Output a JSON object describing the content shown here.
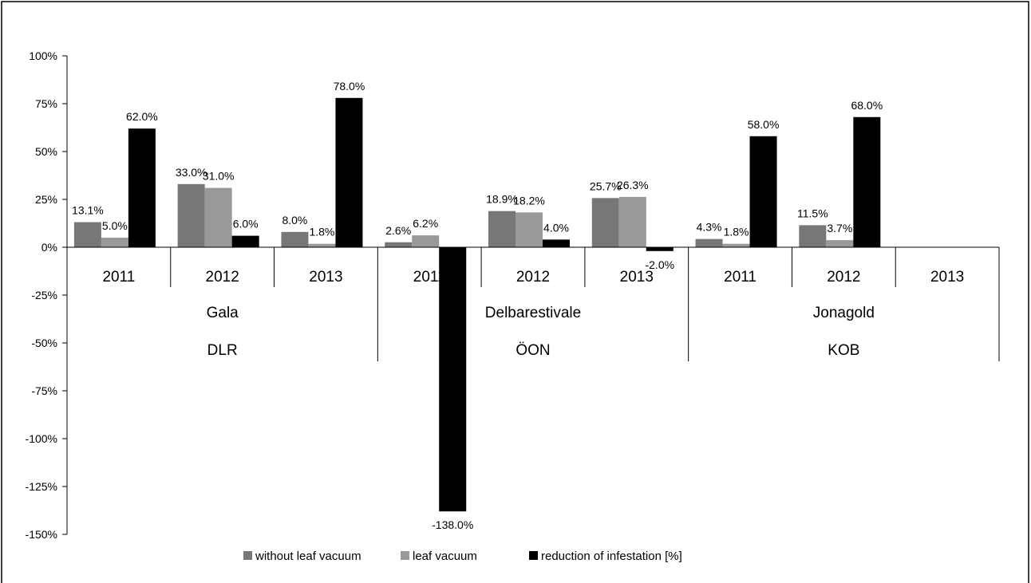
{
  "chart_data": {
    "type": "bar",
    "title": "",
    "xlabel": "",
    "ylabel": "",
    "ylim": [
      -150,
      100
    ],
    "yticks": [
      100,
      75,
      50,
      25,
      0,
      -25,
      -50,
      -75,
      -100,
      -125,
      -150
    ],
    "ytick_labels": [
      "100%",
      "75%",
      "50%",
      "25%",
      "0%",
      "-25%",
      "-50%",
      "-75%",
      "-100%",
      "-125%",
      "-150%"
    ],
    "grid": false,
    "legend_position": "bottom",
    "categories": [
      "2011",
      "2012",
      "2013",
      "2011",
      "2012",
      "2013",
      "2011",
      "2012",
      "2013"
    ],
    "groups_level2": [
      {
        "label": "Gala",
        "span": 3
      },
      {
        "label": "Delbarestivale",
        "span": 3
      },
      {
        "label": "Jonagold",
        "span": 3
      }
    ],
    "groups_level3": [
      {
        "label": "DLR",
        "span": 3
      },
      {
        "label": "ÖON",
        "span": 3
      },
      {
        "label": "KOB",
        "span": 3
      }
    ],
    "series": [
      {
        "name": "without leaf vacuum",
        "color": "#777777",
        "values": [
          13.1,
          33.0,
          8.0,
          2.6,
          18.9,
          25.7,
          4.3,
          11.5,
          null
        ],
        "labels": [
          "13.1%",
          "33.0%",
          "8.0%",
          "2.6%",
          "18.9%",
          "25.7%",
          "4.3%",
          "11.5%",
          ""
        ]
      },
      {
        "name": "leaf vacuum",
        "color": "#999999",
        "values": [
          5.0,
          31.0,
          1.8,
          6.2,
          18.2,
          26.3,
          1.8,
          3.7,
          null
        ],
        "labels": [
          "5.0%",
          "31.0%",
          "1.8%",
          "6.2%",
          "18.2%",
          "26.3%",
          "1.8%",
          "3.7%",
          ""
        ]
      },
      {
        "name": "reduction of infestation [%]",
        "color": "#000000",
        "values": [
          62.0,
          6.0,
          78.0,
          -138.0,
          4.0,
          -2.0,
          58.0,
          68.0,
          null
        ],
        "labels": [
          "62.0%",
          "6.0%",
          "78.0%",
          "-138.0%",
          "4.0%",
          "-2.0%",
          "58.0%",
          "68.0%",
          ""
        ]
      }
    ]
  }
}
